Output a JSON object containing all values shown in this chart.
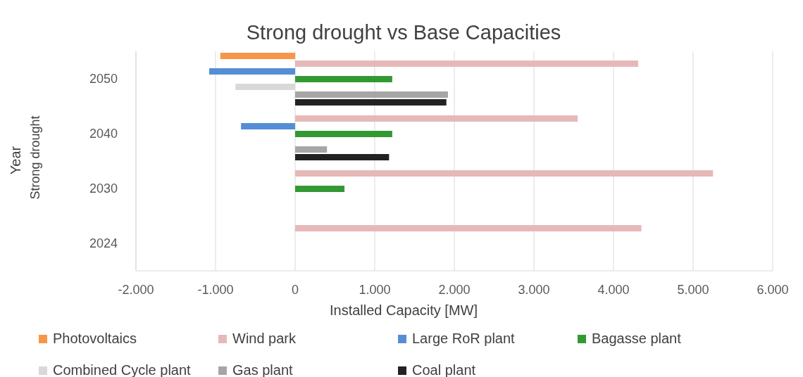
{
  "chart_data": {
    "type": "bar",
    "orientation": "horizontal",
    "title": "Strong drought vs Base Capacities",
    "xlabel": "Installed Capacity [MW]",
    "ylabel": "Year",
    "annotations": [
      "Strong drought"
    ],
    "categories": [
      "2050",
      "2040",
      "2030",
      "2024"
    ],
    "series": [
      {
        "name": "Photovoltaics",
        "color": "#f79646",
        "values": [
          -940,
          null,
          null,
          null
        ]
      },
      {
        "name": "Wind park",
        "color": "#e6b9b8",
        "values": [
          4310,
          3550,
          5250,
          4350
        ]
      },
      {
        "name": "Large RoR plant",
        "color": "#558ed5",
        "values": [
          -1080,
          -680,
          null,
          null
        ]
      },
      {
        "name": "Bagasse plant",
        "color": "#339933",
        "values": [
          1220,
          1220,
          620,
          null
        ]
      },
      {
        "name": "Combined Cycle plant",
        "color": "#d9d9d9",
        "values": [
          -750,
          null,
          null,
          null
        ]
      },
      {
        "name": "Gas plant",
        "color": "#a6a6a6",
        "values": [
          1920,
          400,
          null,
          null
        ]
      },
      {
        "name": "Coal plant",
        "color": "#222222",
        "values": [
          1900,
          1180,
          null,
          null
        ]
      }
    ],
    "xlim": [
      -2000,
      6000
    ],
    "xticks": [
      {
        "value": -2000,
        "label": "-2.000"
      },
      {
        "value": -1000,
        "label": "-1.000"
      },
      0,
      {
        "value": 1000,
        "label": "1.000"
      },
      {
        "value": 2000,
        "label": "2.000"
      },
      {
        "value": 3000,
        "label": "3.000"
      },
      {
        "value": 4000,
        "label": "4.000"
      },
      {
        "value": 5000,
        "label": "5.000"
      },
      {
        "value": 6000,
        "label": "6.000"
      }
    ],
    "grid": "x",
    "legend": "bottom"
  }
}
